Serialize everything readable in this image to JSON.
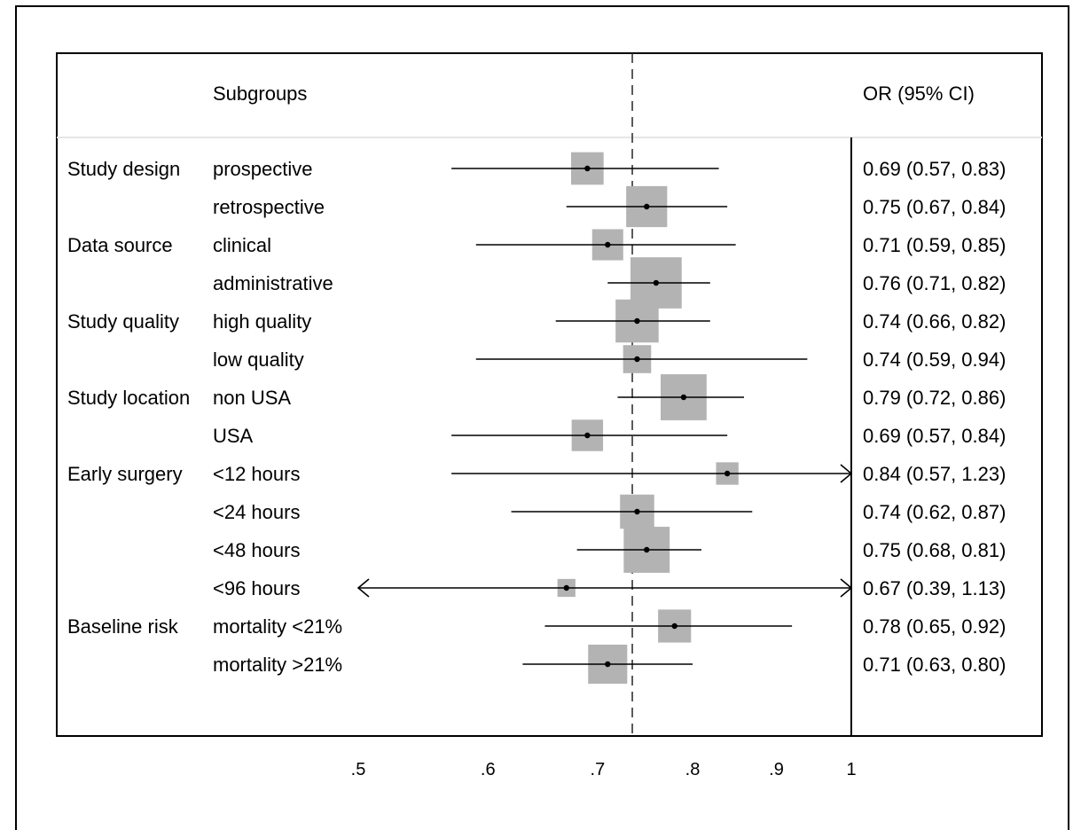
{
  "chart_data": {
    "type": "forest",
    "header": {
      "subgroups": "Subgroups",
      "estimate": "OR (95% CI)"
    },
    "x_scale": "log",
    "xlim": [
      0.5,
      1.0
    ],
    "x_ticks": [
      {
        "value": 0.5,
        "label": ".5"
      },
      {
        "value": 0.6,
        "label": ".6"
      },
      {
        "value": 0.7,
        "label": ".7"
      },
      {
        "value": 0.8,
        "label": ".8"
      },
      {
        "value": 0.9,
        "label": ".9"
      },
      {
        "value": 1.0,
        "label": "1"
      }
    ],
    "overall_or": 0.735,
    "null_line": 1.0,
    "marker_color": "#b3b3b3",
    "rows": [
      {
        "group": "Study design",
        "subgroup": "prospective",
        "or": 0.69,
        "lo": 0.57,
        "hi": 0.83,
        "label": "0.69 (0.57, 0.83)",
        "weight": 0.0525
      },
      {
        "group": "",
        "subgroup": "retrospective",
        "or": 0.75,
        "lo": 0.67,
        "hi": 0.84,
        "label": "0.75 (0.67, 0.84)",
        "weight": 0.0835
      },
      {
        "group": "Data source",
        "subgroup": "clinical",
        "or": 0.71,
        "lo": 0.59,
        "hi": 0.85,
        "label": "0.71 (0.59, 0.85)",
        "weight": 0.048
      },
      {
        "group": "",
        "subgroup": "administrative",
        "or": 0.76,
        "lo": 0.71,
        "hi": 0.82,
        "label": "0.76 (0.71, 0.82)",
        "weight": 0.13
      },
      {
        "group": "Study quality",
        "subgroup": "high quality",
        "or": 0.74,
        "lo": 0.66,
        "hi": 0.82,
        "label": "0.74 (0.66, 0.82)",
        "weight": 0.092
      },
      {
        "group": "",
        "subgroup": "low quality",
        "or": 0.74,
        "lo": 0.59,
        "hi": 0.94,
        "label": "0.74 (0.59, 0.94)",
        "weight": 0.039
      },
      {
        "group": "Study location",
        "subgroup": "non USA",
        "or": 0.79,
        "lo": 0.72,
        "hi": 0.86,
        "label": "0.79 (0.72, 0.86)",
        "weight": 0.105
      },
      {
        "group": "",
        "subgroup": "USA",
        "or": 0.69,
        "lo": 0.57,
        "hi": 0.84,
        "label": "0.69 (0.57, 0.84)",
        "weight": 0.049
      },
      {
        "group": "Early surgery",
        "subgroup": "<12 hours",
        "or": 0.84,
        "lo": 0.57,
        "hi": 1.23,
        "label": "0.84 (0.57, 1.23)",
        "weight": 0.025
      },
      {
        "group": "",
        "subgroup": "<24 hours",
        "or": 0.74,
        "lo": 0.62,
        "hi": 0.87,
        "label": "0.74 (0.62, 0.87)",
        "weight": 0.058
      },
      {
        "group": "",
        "subgroup": "<48 hours",
        "or": 0.75,
        "lo": 0.68,
        "hi": 0.81,
        "label": "0.75 (0.68, 0.81)",
        "weight": 0.105
      },
      {
        "group": "",
        "subgroup": "<96 hours",
        "or": 0.67,
        "lo": 0.39,
        "hi": 1.13,
        "label": "0.67 (0.39, 1.13)",
        "weight": 0.016
      },
      {
        "group": "Baseline risk",
        "subgroup": "mortality <21%",
        "or": 0.78,
        "lo": 0.65,
        "hi": 0.92,
        "label": "0.78 (0.65, 0.92)",
        "weight": 0.054
      },
      {
        "group": "",
        "subgroup": "mortality >21%",
        "or": 0.71,
        "lo": 0.63,
        "hi": 0.8,
        "label": "0.71 (0.63, 0.80)",
        "weight": 0.076
      }
    ]
  }
}
